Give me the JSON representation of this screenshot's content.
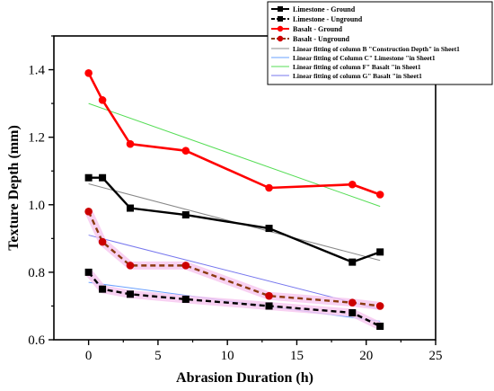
{
  "chart_data": {
    "type": "line",
    "title": "",
    "xlabel": "Abrasion Duration (h)",
    "ylabel": "Texture Depth (mm)",
    "xlim": [
      -2.5,
      25
    ],
    "ylim": [
      0.6,
      1.5
    ],
    "xticks": [
      0,
      5,
      10,
      15,
      20,
      25
    ],
    "yticks": [
      0.6,
      0.8,
      1.0,
      1.2,
      1.4
    ],
    "xtick_labels": [
      "0",
      "5",
      "10",
      "15",
      "20",
      "25"
    ],
    "ytick_labels": [
      "0.6",
      "0.8",
      "1.0",
      "1.2",
      "1.4"
    ],
    "grid": false,
    "legend_position": "top-right",
    "series": [
      {
        "name": "Limestone - Ground",
        "color": "#000000",
        "marker": "square",
        "line_style": "solid",
        "x": [
          0,
          1,
          3,
          7,
          13,
          19,
          21
        ],
        "values": [
          1.08,
          1.08,
          0.99,
          0.97,
          0.93,
          0.83,
          0.86
        ]
      },
      {
        "name": "Limestone - Unground",
        "color": "#000000",
        "marker": "square",
        "line_style": "dashed",
        "x": [
          0,
          1,
          3,
          7,
          13,
          19,
          21
        ],
        "values": [
          0.8,
          0.75,
          0.735,
          0.72,
          0.7,
          0.68,
          0.64
        ]
      },
      {
        "name": "Basalt - Ground",
        "color": "#ff0000",
        "marker": "circle",
        "line_style": "solid",
        "x": [
          0,
          1,
          3,
          7,
          13,
          19,
          21
        ],
        "values": [
          1.39,
          1.31,
          1.18,
          1.16,
          1.05,
          1.06,
          1.03
        ]
      },
      {
        "name": "Basalt - Unground",
        "color": "#8b3a10",
        "marker_color": "#cc0000",
        "marker": "circle",
        "line_style": "dashed",
        "x": [
          0,
          1,
          3,
          7,
          13,
          19,
          21
        ],
        "values": [
          0.98,
          0.89,
          0.82,
          0.82,
          0.73,
          0.71,
          0.7
        ]
      }
    ],
    "fits": [
      {
        "name": "Linear fitting of column B \"Construction Depth\" in Sheet1",
        "color": "#888888",
        "x": [
          0,
          21
        ],
        "values": [
          1.062,
          0.835
        ]
      },
      {
        "name": "Linear fitting of Column C\" Limestone \"in Sheet1",
        "color": "#6aa0ff",
        "x": [
          0,
          21
        ],
        "values": [
          0.77,
          0.655
        ]
      },
      {
        "name": "Linear fitting of column F\" Basalt \"in Sheet1",
        "color": "#55dd55",
        "x": [
          0,
          21
        ],
        "values": [
          1.3,
          0.995
        ]
      },
      {
        "name": "Linear fitting of column G\" Basalt \"in Sheet1",
        "color": "#7777ee",
        "x": [
          0,
          21
        ],
        "values": [
          0.91,
          0.69
        ]
      }
    ]
  }
}
